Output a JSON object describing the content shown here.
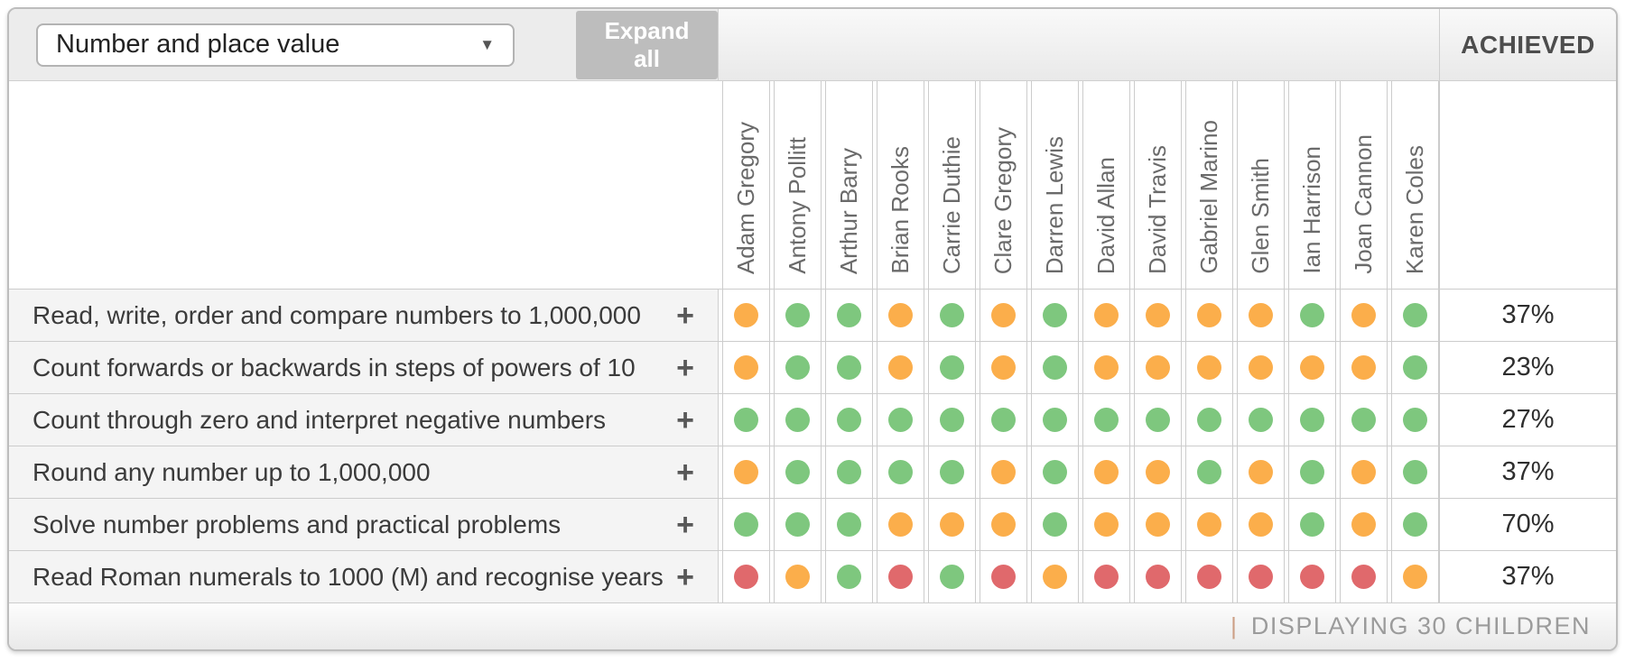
{
  "toolbar": {
    "filter_value": "Number and place value",
    "caret": "▼",
    "expand_label": "Expand all"
  },
  "header": {
    "achieved_label": "ACHIEVED"
  },
  "students": [
    "Adam Gregory",
    "Antony Pollitt",
    "Arthur Barry",
    "Brian Rooks",
    "Carrie Duthie",
    "Clare Gregory",
    "Darren Lewis",
    "David Allan",
    "David Travis",
    "Gabriel Marino",
    "Glen Smith",
    "Ian Harrison",
    "Joan Cannon",
    "Karen Coles"
  ],
  "status_colors": {
    "g": "#7EC77E",
    "o": "#FBAE4B",
    "r": "#E0696C"
  },
  "rows": [
    {
      "objective": "Read, write, order and compare numbers to 1,000,000",
      "expand_icon": "+",
      "achieved": "37%",
      "dots": [
        "o",
        "g",
        "g",
        "o",
        "g",
        "o",
        "g",
        "o",
        "o",
        "o",
        "o",
        "g",
        "o",
        "g"
      ]
    },
    {
      "objective": "Count forwards or backwards in steps of powers of 10",
      "expand_icon": "+",
      "achieved": "23%",
      "dots": [
        "o",
        "g",
        "g",
        "o",
        "g",
        "o",
        "g",
        "o",
        "o",
        "o",
        "o",
        "o",
        "o",
        "g"
      ]
    },
    {
      "objective": "Count through zero and interpret negative numbers",
      "expand_icon": "+",
      "achieved": "27%",
      "dots": [
        "g",
        "g",
        "g",
        "g",
        "g",
        "g",
        "g",
        "g",
        "g",
        "g",
        "g",
        "g",
        "g",
        "g"
      ]
    },
    {
      "objective": "Round any number up to 1,000,000",
      "expand_icon": "+",
      "achieved": "37%",
      "dots": [
        "o",
        "g",
        "g",
        "g",
        "g",
        "o",
        "g",
        "o",
        "o",
        "g",
        "o",
        "g",
        "o",
        "g"
      ]
    },
    {
      "objective": "Solve number problems and practical problems",
      "expand_icon": "+",
      "achieved": "70%",
      "dots": [
        "g",
        "g",
        "g",
        "o",
        "o",
        "o",
        "g",
        "o",
        "o",
        "o",
        "o",
        "g",
        "o",
        "g"
      ]
    },
    {
      "objective": "Read Roman numerals to 1000 (M) and recognise years",
      "expand_icon": "+",
      "achieved": "37%",
      "dots": [
        "r",
        "o",
        "g",
        "r",
        "g",
        "r",
        "o",
        "r",
        "r",
        "r",
        "r",
        "r",
        "r",
        "o"
      ]
    }
  ],
  "footer": {
    "separator": "|",
    "displaying": "DISPLAYING 30 CHILDREN"
  }
}
